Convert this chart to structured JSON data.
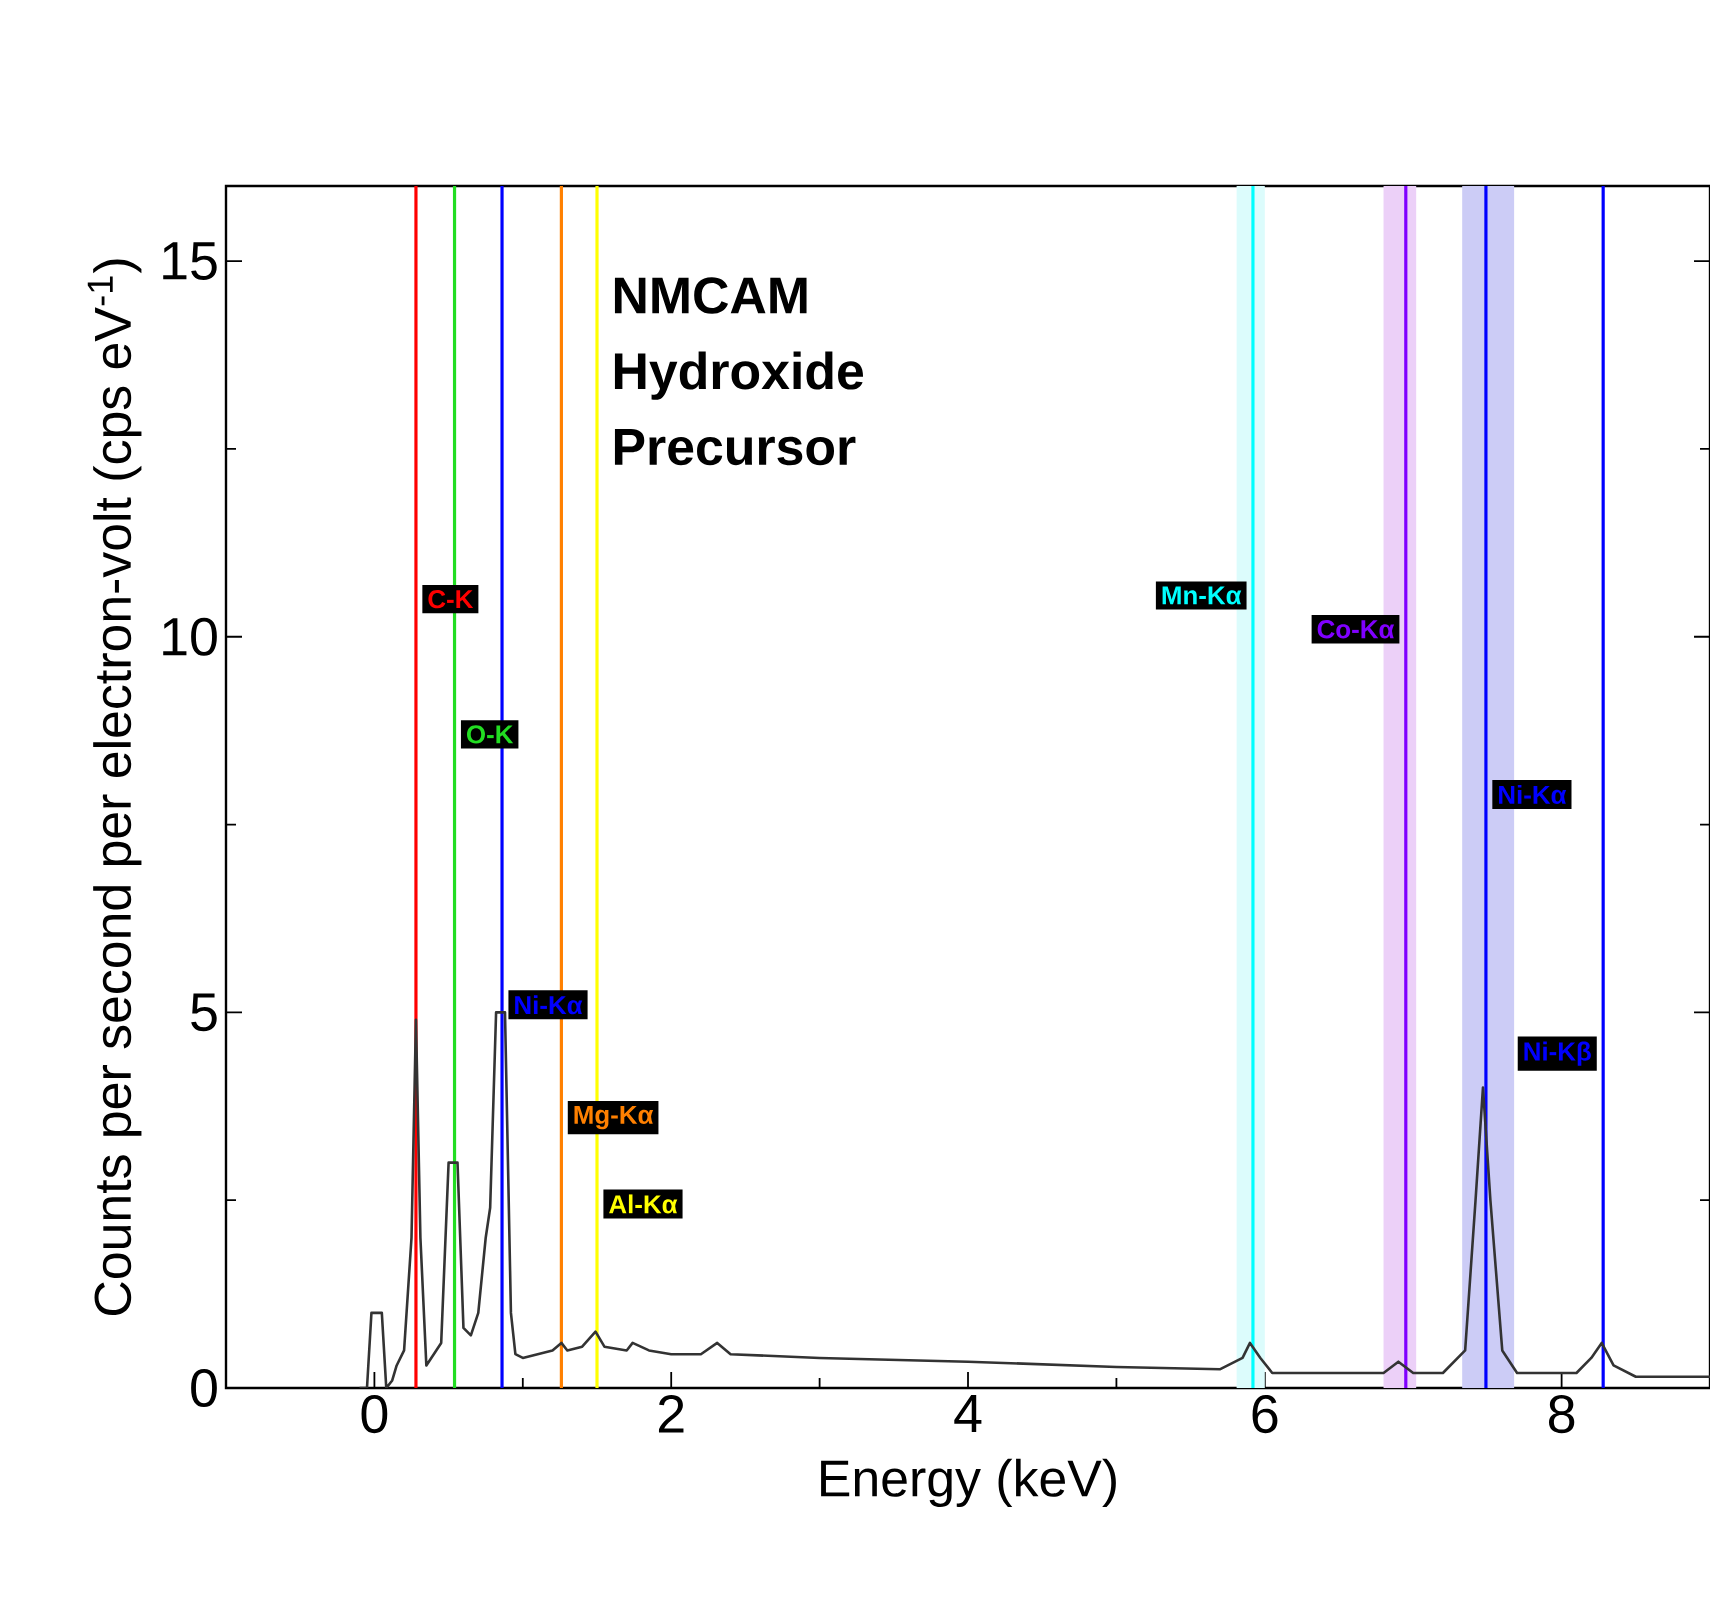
{
  "chart_data": {
    "type": "line",
    "xlabel": "Energy (keV)",
    "ylabel": "Counts per second per electron-volt (cps eV$^{-1}$)",
    "annotations": [
      "NMCAM Hydroxide Precursor"
    ],
    "xlim": [
      -1,
      9
    ],
    "ylim": [
      0,
      16
    ],
    "xticks": [
      0,
      2,
      4,
      6,
      8
    ],
    "yticks": [
      0,
      5,
      10,
      15
    ],
    "series": [
      {
        "color": "#333333",
        "x": [
          -0.1,
          -0.05,
          -0.02,
          0.0,
          0.02,
          0.05,
          0.08,
          0.12,
          0.15,
          0.2,
          0.25,
          0.28,
          0.31,
          0.35,
          0.45,
          0.5,
          0.53,
          0.56,
          0.6,
          0.65,
          0.7,
          0.75,
          0.78,
          0.82,
          0.85,
          0.88,
          0.92,
          0.95,
          1.0,
          1.1,
          1.2,
          1.26,
          1.3,
          1.4,
          1.49,
          1.55,
          1.7,
          1.74,
          1.85,
          2.0,
          2.2,
          2.31,
          2.4,
          3.0,
          4.0,
          5.0,
          5.7,
          5.85,
          5.9,
          5.97,
          6.05,
          6.5,
          6.8,
          6.9,
          7.0,
          7.2,
          7.35,
          7.42,
          7.47,
          7.52,
          7.6,
          7.7,
          8.1,
          8.2,
          8.27,
          8.35,
          8.5,
          9.0
        ],
        "values": [
          0,
          0,
          1,
          null,
          null,
          1,
          0,
          0.1,
          0.3,
          0.5,
          2,
          4.9,
          2,
          0.3,
          0.6,
          3,
          null,
          3,
          0.8,
          0.7,
          1,
          2.0,
          2.4,
          5,
          null,
          5,
          1,
          0.45,
          0.4,
          0.45,
          0.5,
          0.6,
          0.5,
          0.55,
          0.75,
          0.55,
          0.5,
          0.6,
          0.5,
          0.45,
          0.45,
          0.6,
          0.45,
          0.4,
          0.35,
          0.28,
          0.25,
          0.4,
          0.6,
          0.4,
          0.2,
          0.2,
          0.2,
          0.35,
          0.2,
          0.2,
          0.5,
          2.5,
          4.0,
          2.5,
          0.5,
          0.2,
          0.2,
          0.4,
          0.6,
          0.3,
          0.15,
          0.15
        ]
      }
    ],
    "bands": [
      {
        "axis": "x",
        "from": 5.81,
        "to": 6.0,
        "color": "#dcfcfc"
      },
      {
        "axis": "x",
        "from": 6.8,
        "to": 7.02,
        "color": "#ecd0f8"
      },
      {
        "axis": "x",
        "from": 7.33,
        "to": 7.68,
        "color": "#ccccf6"
      }
    ],
    "ref_lines": [
      {
        "axis": "x",
        "value": 0.28,
        "label": "C-K",
        "color": "#ff0000"
      },
      {
        "axis": "x",
        "value": 0.54,
        "label": "O-K",
        "color": "#22dd22"
      },
      {
        "axis": "x",
        "value": 0.86,
        "label": "Ni-Kα",
        "color": "#0000ff"
      },
      {
        "axis": "x",
        "value": 1.26,
        "label": "Mg-Kα",
        "color": "#ff8000"
      },
      {
        "axis": "x",
        "value": 1.5,
        "label": "Al-Kα",
        "color": "#ffff00"
      },
      {
        "axis": "x",
        "value": 5.92,
        "label": "Mn-Kα",
        "color": "#00ffff"
      },
      {
        "axis": "x",
        "value": 6.95,
        "label": "Co-Kα",
        "color": "#8000ff"
      },
      {
        "axis": "x",
        "value": 7.49,
        "label": "Ni-Kα",
        "color": "#0000ff"
      },
      {
        "axis": "x",
        "value": 8.28,
        "label": "Ni-Kβ",
        "color": "#0000ff"
      }
    ]
  }
}
